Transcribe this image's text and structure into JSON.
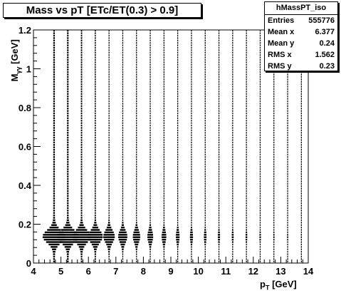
{
  "histogram": {
    "title": "Mass vs pT [ETc/ET(0.3) > 0.9]",
    "stats": {
      "name": "hMassPT_iso",
      "rows": [
        {
          "label": "Entries",
          "value": "555776"
        },
        {
          "label": "Mean x",
          "value": "6.377"
        },
        {
          "label": "Mean y",
          "value": "0.24"
        },
        {
          "label": "RMS x",
          "value": "1.562"
        },
        {
          "label": "RMS y",
          "value": "0.23"
        }
      ]
    }
  },
  "axes": {
    "xlabel_main": "p",
    "xlabel_sub": "T",
    "xlabel_unit": "[GeV]",
    "ylabel_main": "M",
    "ylabel_sub": "γγ",
    "ylabel_unit": "[GeV]"
  },
  "chart_data": {
    "type": "heatmap",
    "style": "box",
    "title": "Mass vs pT [ETc/ET(0.3) > 0.9]",
    "xlabel": "pT [GeV]",
    "ylabel": "Mγγ [GeV]",
    "xlim": [
      4,
      14
    ],
    "ylim": [
      0,
      1.2
    ],
    "x_ticks": [
      "4",
      "5",
      "6",
      "7",
      "8",
      "9",
      "10",
      "11",
      "12",
      "13",
      "14"
    ],
    "y_ticks": [
      "0",
      "0.2",
      "0.4",
      "0.6",
      "0.8",
      "1",
      "1.2"
    ],
    "grid": false,
    "pt_bin_centers": [
      4.75,
      5.25,
      5.75,
      6.25,
      6.75,
      7.25,
      7.75,
      8.25,
      8.75,
      9.25,
      9.75,
      10.25,
      10.75,
      11.25,
      11.75,
      12.25,
      12.75,
      13.25,
      13.75
    ],
    "relative_intensity": [
      1.0,
      0.95,
      0.8,
      0.65,
      0.5,
      0.4,
      0.32,
      0.25,
      0.2,
      0.16,
      0.13,
      0.11,
      0.09,
      0.08,
      0.07,
      0.06,
      0.05,
      0.045,
      0.04
    ],
    "mass_peak": 0.135
  }
}
